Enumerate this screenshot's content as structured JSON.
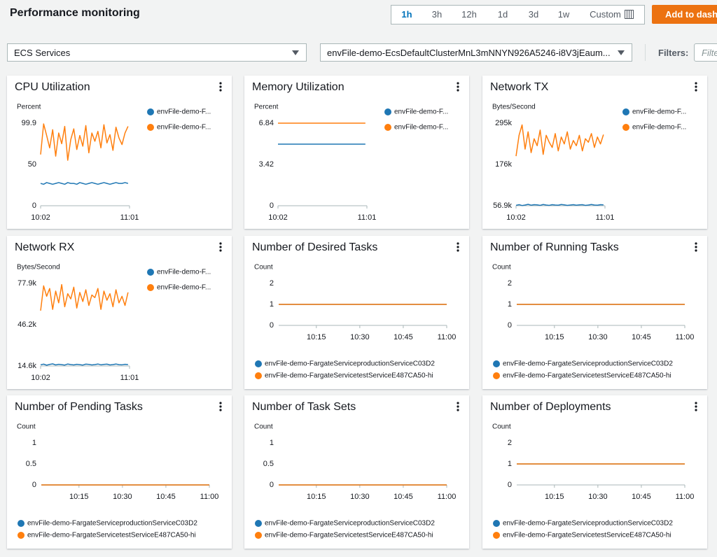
{
  "header": {
    "title": "Performance monitoring",
    "time_ranges": [
      "1h",
      "3h",
      "12h",
      "1d",
      "3d",
      "1w"
    ],
    "custom": "Custom",
    "add_button": "Add to dash"
  },
  "filters": {
    "service": "ECS Services",
    "cluster": "envFile-demo-EcsDefaultClusterMnL3mNNYN926A5246-i8V3jEaum...",
    "label": "Filters:",
    "placeholder": "Filte"
  },
  "chart_data": [
    {
      "type": "line",
      "title": "CPU Utilization",
      "y_label": "Percent",
      "legend": "right",
      "x": [
        "10:02",
        "10:04",
        "10:06",
        "10:08",
        "10:10",
        "10:12",
        "10:14",
        "10:16",
        "10:18",
        "10:20",
        "10:22",
        "10:24",
        "10:26",
        "10:28",
        "10:30",
        "10:32",
        "10:34",
        "10:36",
        "10:38",
        "10:40",
        "10:42",
        "10:44",
        "10:46",
        "10:48",
        "10:50",
        "10:52",
        "10:54",
        "10:56",
        "10:58",
        "11:00"
      ],
      "xlim": [
        "10:02",
        "11:01"
      ],
      "xticks": [
        "10:02",
        "11:01"
      ],
      "ylim": [
        0,
        99.9
      ],
      "yticks": [
        0,
        50,
        99.9
      ],
      "series": [
        {
          "name": "envFile-demo-F...",
          "color": "#1f77b4",
          "values": [
            27,
            26,
            28,
            27,
            26,
            27,
            28,
            27,
            26,
            28,
            27,
            27,
            26,
            28,
            27,
            26,
            27,
            28,
            27,
            26,
            27,
            28,
            27,
            26,
            27,
            28,
            27,
            27,
            28,
            27
          ]
        },
        {
          "name": "envFile-demo-F...",
          "color": "#ff7f0e",
          "values": [
            62,
            99,
            85,
            70,
            92,
            60,
            88,
            75,
            96,
            55,
            80,
            93,
            68,
            85,
            72,
            97,
            64,
            88,
            78,
            90,
            70,
            98,
            76,
            86,
            67,
            95,
            82,
            74,
            88,
            96
          ]
        }
      ]
    },
    {
      "type": "line",
      "title": "Memory Utilization",
      "y_label": "Percent",
      "legend": "right",
      "x": [
        "10:02",
        "11:00"
      ],
      "xlim": [
        "10:02",
        "11:01"
      ],
      "xticks": [
        "10:02",
        "11:01"
      ],
      "ylim": [
        0,
        6.84
      ],
      "yticks": [
        0,
        3.42,
        6.84
      ],
      "series": [
        {
          "name": "envFile-demo-F...",
          "color": "#1f77b4",
          "values": [
            5.1,
            5.1
          ]
        },
        {
          "name": "envFile-demo-F...",
          "color": "#ff7f0e",
          "values": [
            6.84,
            6.84
          ]
        }
      ]
    },
    {
      "type": "line",
      "title": "Network TX",
      "y_label": "Bytes/Second",
      "legend": "right",
      "x": [
        "10:02",
        "10:04",
        "10:06",
        "10:08",
        "10:10",
        "10:12",
        "10:14",
        "10:16",
        "10:18",
        "10:20",
        "10:22",
        "10:24",
        "10:26",
        "10:28",
        "10:30",
        "10:32",
        "10:34",
        "10:36",
        "10:38",
        "10:40",
        "10:42",
        "10:44",
        "10:46",
        "10:48",
        "10:50",
        "10:52",
        "10:54",
        "10:56",
        "10:58",
        "11:00"
      ],
      "xlim": [
        "10:02",
        "11:01"
      ],
      "xticks": [
        "10:02",
        "11:01"
      ],
      "ylim": [
        56900,
        295000
      ],
      "yticks": [
        {
          "value": 56900,
          "label": "56.9k"
        },
        {
          "value": 176000,
          "label": "176k"
        },
        {
          "value": 295000,
          "label": "295k"
        }
      ],
      "series": [
        {
          "name": "envFile-demo-F...",
          "color": "#1f77b4",
          "values": [
            58000,
            60000,
            57500,
            59000,
            61000,
            58500,
            60000,
            59500,
            58000,
            60500,
            59000,
            58000,
            60000,
            59000,
            58500,
            60500,
            59500,
            58000,
            59000,
            60000,
            58500,
            59500,
            60000,
            58000,
            59000,
            60500,
            59000,
            58500,
            60000,
            59500
          ]
        },
        {
          "name": "envFile-demo-F...",
          "color": "#ff7f0e",
          "values": [
            200000,
            260000,
            290000,
            220000,
            270000,
            210000,
            250000,
            230000,
            275000,
            205000,
            260000,
            240000,
            225000,
            265000,
            215000,
            255000,
            235000,
            270000,
            220000,
            245000,
            230000,
            260000,
            215000,
            250000,
            240000,
            265000,
            225000,
            255000,
            235000,
            262000
          ]
        }
      ]
    },
    {
      "type": "line",
      "title": "Network RX",
      "y_label": "Bytes/Second",
      "legend": "right",
      "x": [
        "10:02",
        "10:04",
        "10:06",
        "10:08",
        "10:10",
        "10:12",
        "10:14",
        "10:16",
        "10:18",
        "10:20",
        "10:22",
        "10:24",
        "10:26",
        "10:28",
        "10:30",
        "10:32",
        "10:34",
        "10:36",
        "10:38",
        "10:40",
        "10:42",
        "10:44",
        "10:46",
        "10:48",
        "10:50",
        "10:52",
        "10:54",
        "10:56",
        "10:58",
        "11:00"
      ],
      "xlim": [
        "10:02",
        "11:01"
      ],
      "xticks": [
        "10:02",
        "11:01"
      ],
      "ylim": [
        14600,
        77900
      ],
      "yticks": [
        {
          "value": 14600,
          "label": "14.6k"
        },
        {
          "value": 46200,
          "label": "46.2k"
        },
        {
          "value": 77900,
          "label": "77.9k"
        }
      ],
      "series": [
        {
          "name": "envFile-demo-F...",
          "color": "#1f77b4",
          "values": [
            15500,
            16000,
            15200,
            15800,
            16200,
            15400,
            15900,
            15600,
            15300,
            16100,
            15700,
            15400,
            15900,
            15600,
            15300,
            16000,
            15800,
            15400,
            15700,
            16100,
            15500,
            15800,
            16000,
            15400,
            15700,
            16100,
            15600,
            15500,
            15900,
            15700
          ]
        },
        {
          "name": "envFile-demo-F...",
          "color": "#ff7f0e",
          "values": [
            57000,
            76000,
            68000,
            74000,
            58000,
            72000,
            63000,
            77000,
            60000,
            70000,
            66000,
            75000,
            59000,
            71000,
            64000,
            73000,
            61000,
            69000,
            67000,
            74000,
            58000,
            72000,
            65000,
            70000,
            60000,
            73000,
            63000,
            68000,
            61000,
            71000
          ]
        }
      ]
    },
    {
      "type": "line",
      "title": "Number of Desired Tasks",
      "y_label": "Count",
      "legend": "bottom",
      "x": [
        "10:02",
        "11:00"
      ],
      "xlim": [
        "10:02",
        "11:00"
      ],
      "xticks": [
        "10:15",
        "10:30",
        "10:45",
        "11:00"
      ],
      "ylim": [
        0,
        2
      ],
      "yticks": [
        0,
        1,
        2
      ],
      "series": [
        {
          "name": "envFile-demo-FargateServiceproductionServiceC03D2",
          "color": "#1f77b4",
          "values": [
            1,
            1
          ]
        },
        {
          "name": "envFile-demo-FargateServicetestServiceE487CA50-hi",
          "color": "#ff7f0e",
          "values": [
            1,
            1
          ]
        }
      ]
    },
    {
      "type": "line",
      "title": "Number of Running Tasks",
      "y_label": "Count",
      "legend": "bottom",
      "x": [
        "10:02",
        "11:00"
      ],
      "xlim": [
        "10:02",
        "11:00"
      ],
      "xticks": [
        "10:15",
        "10:30",
        "10:45",
        "11:00"
      ],
      "ylim": [
        0,
        2
      ],
      "yticks": [
        0,
        1,
        2
      ],
      "series": [
        {
          "name": "envFile-demo-FargateServiceproductionServiceC03D2",
          "color": "#1f77b4",
          "values": [
            1,
            1
          ]
        },
        {
          "name": "envFile-demo-FargateServicetestServiceE487CA50-hi",
          "color": "#ff7f0e",
          "values": [
            1,
            1
          ]
        }
      ]
    },
    {
      "type": "line",
      "title": "Number of Pending Tasks",
      "y_label": "Count",
      "legend": "bottom",
      "x": [
        "10:02",
        "11:00"
      ],
      "xlim": [
        "10:02",
        "11:00"
      ],
      "xticks": [
        "10:15",
        "10:30",
        "10:45",
        "11:00"
      ],
      "ylim": [
        0,
        1
      ],
      "yticks": [
        0,
        0.5,
        1
      ],
      "series": [
        {
          "name": "envFile-demo-FargateServiceproductionServiceC03D2",
          "color": "#1f77b4",
          "values": [
            0,
            0
          ]
        },
        {
          "name": "envFile-demo-FargateServicetestServiceE487CA50-hi",
          "color": "#ff7f0e",
          "values": [
            0,
            0
          ]
        }
      ]
    },
    {
      "type": "line",
      "title": "Number of Task Sets",
      "y_label": "Count",
      "legend": "bottom",
      "x": [
        "10:02",
        "11:00"
      ],
      "xlim": [
        "10:02",
        "11:00"
      ],
      "xticks": [
        "10:15",
        "10:30",
        "10:45",
        "11:00"
      ],
      "ylim": [
        0,
        1
      ],
      "yticks": [
        0,
        0.5,
        1
      ],
      "series": [
        {
          "name": "envFile-demo-FargateServiceproductionServiceC03D2",
          "color": "#1f77b4",
          "values": [
            0,
            0
          ]
        },
        {
          "name": "envFile-demo-FargateServicetestServiceE487CA50-hi",
          "color": "#ff7f0e",
          "values": [
            0,
            0
          ]
        }
      ]
    },
    {
      "type": "line",
      "title": "Number of Deployments",
      "y_label": "Count",
      "legend": "bottom",
      "x": [
        "10:02",
        "11:00"
      ],
      "xlim": [
        "10:02",
        "11:00"
      ],
      "xticks": [
        "10:15",
        "10:30",
        "10:45",
        "11:00"
      ],
      "ylim": [
        0,
        2
      ],
      "yticks": [
        0,
        1,
        2
      ],
      "series": [
        {
          "name": "envFile-demo-FargateServiceproductionServiceC03D2",
          "color": "#1f77b4",
          "values": [
            1,
            1
          ]
        },
        {
          "name": "envFile-demo-FargateServicetestServiceE487CA50-hi",
          "color": "#ff7f0e",
          "values": [
            1,
            1
          ]
        }
      ]
    }
  ]
}
